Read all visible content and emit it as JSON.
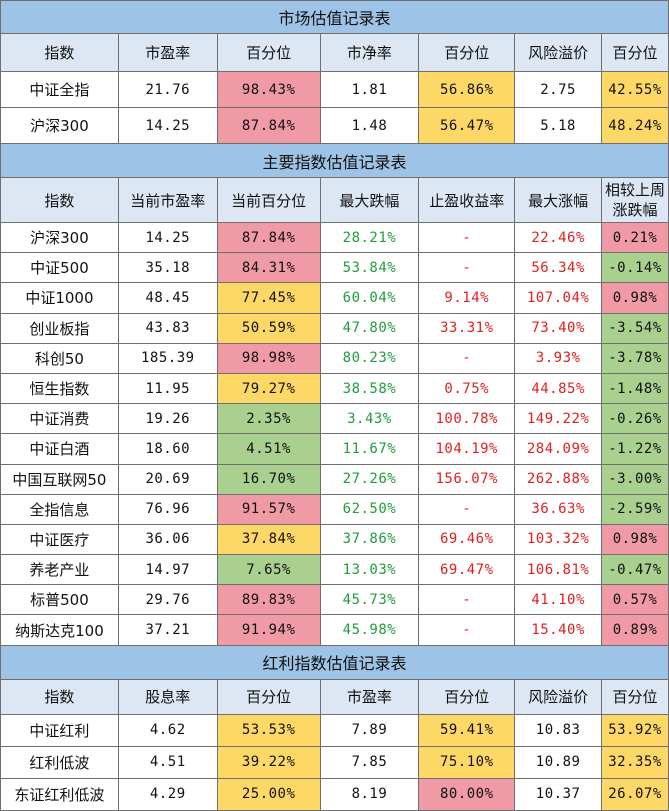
{
  "market": {
    "title": "市场估值记录表",
    "headers": [
      "指数",
      "市盈率",
      "百分位",
      "市净率",
      "百分位",
      "风险溢价",
      "百分位"
    ],
    "rows": [
      {
        "cells": [
          "中证全指",
          "21.76",
          "98.43%",
          "1.81",
          "56.86%",
          "2.75",
          "42.55%"
        ],
        "colors": [
          "",
          "",
          "red",
          "",
          "yel",
          "",
          "yel"
        ]
      },
      {
        "cells": [
          "沪深300",
          "14.25",
          "87.84%",
          "1.48",
          "56.47%",
          "5.18",
          "48.24%"
        ],
        "colors": [
          "",
          "",
          "red",
          "",
          "yel",
          "",
          "yel"
        ]
      }
    ]
  },
  "main": {
    "title": "主要指数估值记录表",
    "headers": [
      "指数",
      "当前市盈率",
      "当前百分位",
      "最大跌幅",
      "止盈收益率",
      "最大涨幅",
      "相较上周\n涨跌幅"
    ],
    "rows": [
      {
        "cells": [
          "沪深300",
          "14.25",
          "87.84%",
          "28.21%",
          "-",
          "22.46%",
          "0.21%"
        ],
        "colors": [
          "",
          "",
          "red",
          "g",
          "r",
          "r",
          "red"
        ]
      },
      {
        "cells": [
          "中证500",
          "35.18",
          "84.31%",
          "53.84%",
          "-",
          "56.34%",
          "-0.14%"
        ],
        "colors": [
          "",
          "",
          "red",
          "g",
          "r",
          "r",
          "grn"
        ]
      },
      {
        "cells": [
          "中证1000",
          "48.45",
          "77.45%",
          "60.04%",
          "9.14%",
          "107.04%",
          "0.98%"
        ],
        "colors": [
          "",
          "",
          "yel",
          "g",
          "r",
          "r",
          "red"
        ]
      },
      {
        "cells": [
          "创业板指",
          "43.83",
          "50.59%",
          "47.80%",
          "33.31%",
          "73.40%",
          "-3.54%"
        ],
        "colors": [
          "",
          "",
          "yel",
          "g",
          "r",
          "r",
          "grn"
        ]
      },
      {
        "cells": [
          "科创50",
          "185.39",
          "98.98%",
          "80.23%",
          "-",
          "3.93%",
          "-3.78%"
        ],
        "colors": [
          "",
          "",
          "red",
          "g",
          "r",
          "r",
          "grn"
        ]
      },
      {
        "cells": [
          "恒生指数",
          "11.95",
          "79.27%",
          "38.58%",
          "0.75%",
          "44.85%",
          "-1.48%"
        ],
        "colors": [
          "",
          "",
          "yel",
          "g",
          "r",
          "r",
          "grn"
        ]
      },
      {
        "cells": [
          "中证消费",
          "19.26",
          "2.35%",
          "3.43%",
          "100.78%",
          "149.22%",
          "-0.26%"
        ],
        "colors": [
          "",
          "",
          "grn",
          "g",
          "r",
          "r",
          "grn"
        ]
      },
      {
        "cells": [
          "中证白酒",
          "18.60",
          "4.51%",
          "11.67%",
          "104.19%",
          "284.09%",
          "-1.22%"
        ],
        "colors": [
          "",
          "",
          "grn",
          "g",
          "r",
          "r",
          "grn"
        ]
      },
      {
        "cells": [
          "中国互联网50",
          "20.69",
          "16.70%",
          "27.26%",
          "156.07%",
          "262.88%",
          "-3.00%"
        ],
        "colors": [
          "",
          "",
          "grn",
          "g",
          "r",
          "r",
          "grn"
        ]
      },
      {
        "cells": [
          "全指信息",
          "76.96",
          "91.57%",
          "62.50%",
          "-",
          "36.63%",
          "-2.59%"
        ],
        "colors": [
          "",
          "",
          "red",
          "g",
          "r",
          "r",
          "grn"
        ]
      },
      {
        "cells": [
          "中证医疗",
          "36.06",
          "37.84%",
          "37.86%",
          "69.46%",
          "103.32%",
          "0.98%"
        ],
        "colors": [
          "",
          "",
          "yel",
          "g",
          "r",
          "r",
          "red"
        ]
      },
      {
        "cells": [
          "养老产业",
          "14.97",
          "7.65%",
          "13.03%",
          "69.47%",
          "106.81%",
          "-0.47%"
        ],
        "colors": [
          "",
          "",
          "grn",
          "g",
          "r",
          "r",
          "grn"
        ]
      },
      {
        "cells": [
          "标普500",
          "29.76",
          "89.83%",
          "45.73%",
          "-",
          "41.10%",
          "0.57%"
        ],
        "colors": [
          "",
          "",
          "red",
          "g",
          "r",
          "r",
          "red"
        ]
      },
      {
        "cells": [
          "纳斯达克100",
          "37.21",
          "91.94%",
          "45.98%",
          "-",
          "15.40%",
          "0.89%"
        ],
        "colors": [
          "",
          "",
          "red",
          "g",
          "r",
          "r",
          "red"
        ]
      }
    ]
  },
  "dividend": {
    "title": "红利指数估值记录表",
    "headers": [
      "指数",
      "股息率",
      "百分位",
      "市盈率",
      "百分位",
      "风险溢价",
      "百分位"
    ],
    "rows": [
      {
        "cells": [
          "中证红利",
          "4.62",
          "53.53%",
          "7.89",
          "59.41%",
          "10.83",
          "53.92%"
        ],
        "colors": [
          "",
          "",
          "yel",
          "",
          "yel",
          "",
          "yel"
        ]
      },
      {
        "cells": [
          "红利低波",
          "4.51",
          "39.22%",
          "7.85",
          "75.10%",
          "10.89",
          "32.35%"
        ],
        "colors": [
          "",
          "",
          "yel",
          "",
          "yel",
          "",
          "yel"
        ]
      },
      {
        "cells": [
          "东证红利低波",
          "4.29",
          "25.00%",
          "8.19",
          "80.00%",
          "10.37",
          "26.07%"
        ],
        "colors": [
          "",
          "",
          "yel",
          "",
          "red",
          "",
          "yel"
        ]
      }
    ]
  }
}
